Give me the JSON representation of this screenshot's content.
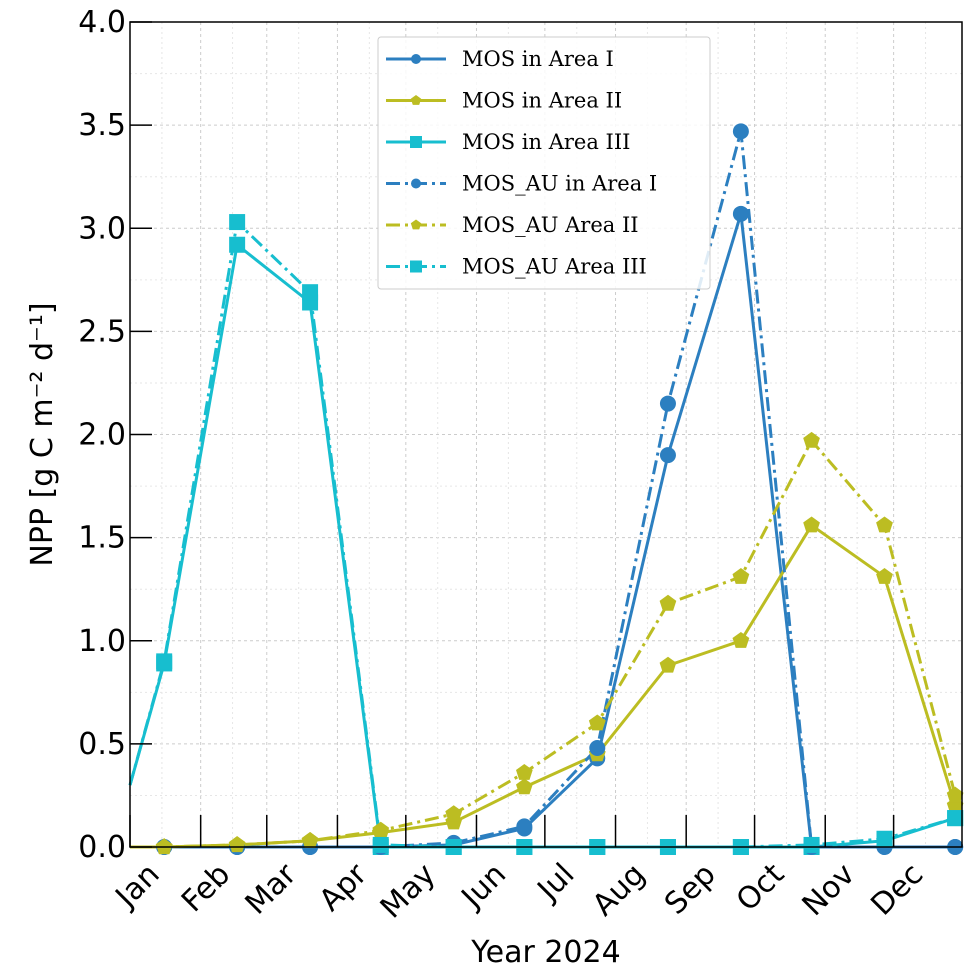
{
  "chart_data": {
    "type": "line",
    "xlabel": "Year 2024",
    "ylabel": "NPP [g C m⁻² d⁻¹]",
    "ylim": [
      0,
      4.0
    ],
    "yticks": [
      "0.0",
      "0.5",
      "1.0",
      "1.5",
      "2.0",
      "2.5",
      "3.0",
      "3.5",
      "4.0"
    ],
    "xticks": [
      "Jan",
      "Feb",
      "Mar",
      "Apr",
      "May",
      "Jun",
      "Jul",
      "Aug",
      "Sep",
      "Oct",
      "Nov",
      "Dec"
    ],
    "grid": true,
    "legend_position": "upper-center",
    "x": [
      "Jan 1",
      "Jan 16",
      "Feb 17",
      "Mar 20",
      "Apr 20",
      "May 22",
      "Jun 22",
      "Jul 24",
      "Aug 24",
      "Sep 25",
      "Oct 26",
      "Nov 27",
      "Dec 28"
    ],
    "series": [
      {
        "name": "MOS in Area I",
        "color": "#2c7fc0",
        "style": "solid",
        "marker": "circle",
        "values": [
          0,
          0,
          0,
          0,
          0,
          0.01,
          0.09,
          0.43,
          1.9,
          3.07,
          0.0,
          0.0,
          0.0
        ]
      },
      {
        "name": "MOS in Area II",
        "color": "#bcbd22",
        "style": "solid",
        "marker": "pentagon",
        "values": [
          0,
          0.0,
          0.01,
          0.03,
          0.07,
          0.12,
          0.29,
          0.45,
          0.88,
          1.0,
          1.56,
          1.31,
          0.2
        ]
      },
      {
        "name": "MOS in Area III",
        "color": "#17becf",
        "style": "solid",
        "marker": "square",
        "values": [
          0.3,
          0.89,
          2.92,
          2.64,
          0.0,
          0.0,
          0.0,
          0.0,
          0.0,
          0.0,
          0.0,
          0.03,
          0.14
        ]
      },
      {
        "name": "MOS_AU in Area I",
        "color": "#2c7fc0",
        "style": "dashdot",
        "marker": "circle",
        "values": [
          0,
          0,
          0,
          0,
          0,
          0.02,
          0.1,
          0.48,
          2.15,
          3.47,
          0.0,
          0.0,
          0.0
        ]
      },
      {
        "name": "MOS_AU Area II",
        "color": "#bcbd22",
        "style": "dashdot",
        "marker": "pentagon",
        "values": [
          0,
          0.0,
          0.01,
          0.03,
          0.08,
          0.16,
          0.36,
          0.6,
          1.18,
          1.31,
          1.97,
          1.56,
          0.25
        ]
      },
      {
        "name": "MOS_AU Area III",
        "color": "#17becf",
        "style": "dashdot",
        "marker": "square",
        "values": [
          0.3,
          0.9,
          3.03,
          2.69,
          0.01,
          0.0,
          0.0,
          0.0,
          0.0,
          0.0,
          0.01,
          0.04,
          0.14
        ]
      }
    ]
  }
}
